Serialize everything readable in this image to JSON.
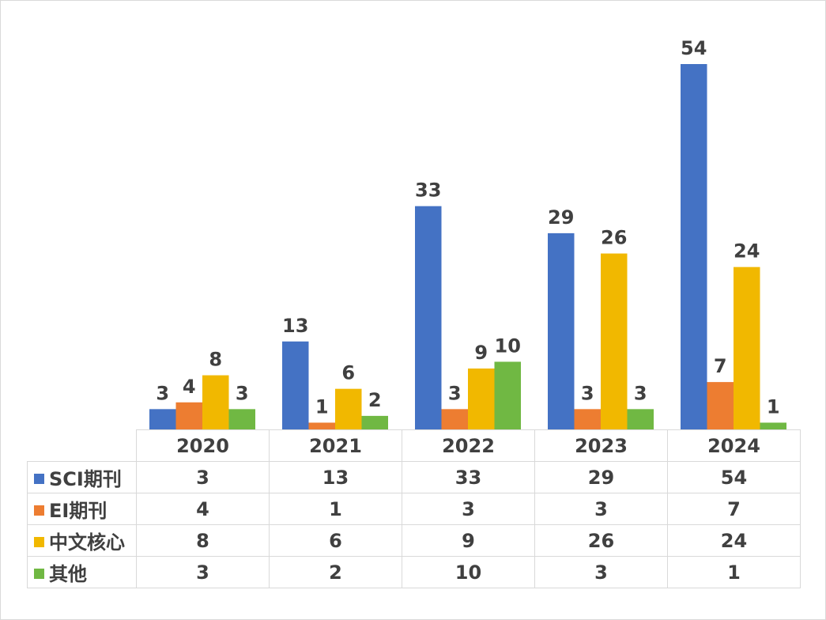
{
  "chart_data": {
    "type": "bar",
    "categories": [
      "2020",
      "2021",
      "2022",
      "2023",
      "2024"
    ],
    "series": [
      {
        "name": "SCI期刊",
        "color": "#4472c4",
        "values": [
          3,
          13,
          33,
          29,
          54
        ]
      },
      {
        "name": "EI期刊",
        "color": "#ed7d31",
        "values": [
          4,
          1,
          3,
          3,
          7
        ]
      },
      {
        "name": "中文核心",
        "color": "#f1b800",
        "values": [
          8,
          6,
          9,
          26,
          24
        ]
      },
      {
        "name": "其他",
        "color": "#70b843",
        "values": [
          3,
          2,
          10,
          3,
          1
        ]
      }
    ],
    "ylim": [
      0,
      54
    ],
    "grid": false,
    "legend": "data-table"
  }
}
